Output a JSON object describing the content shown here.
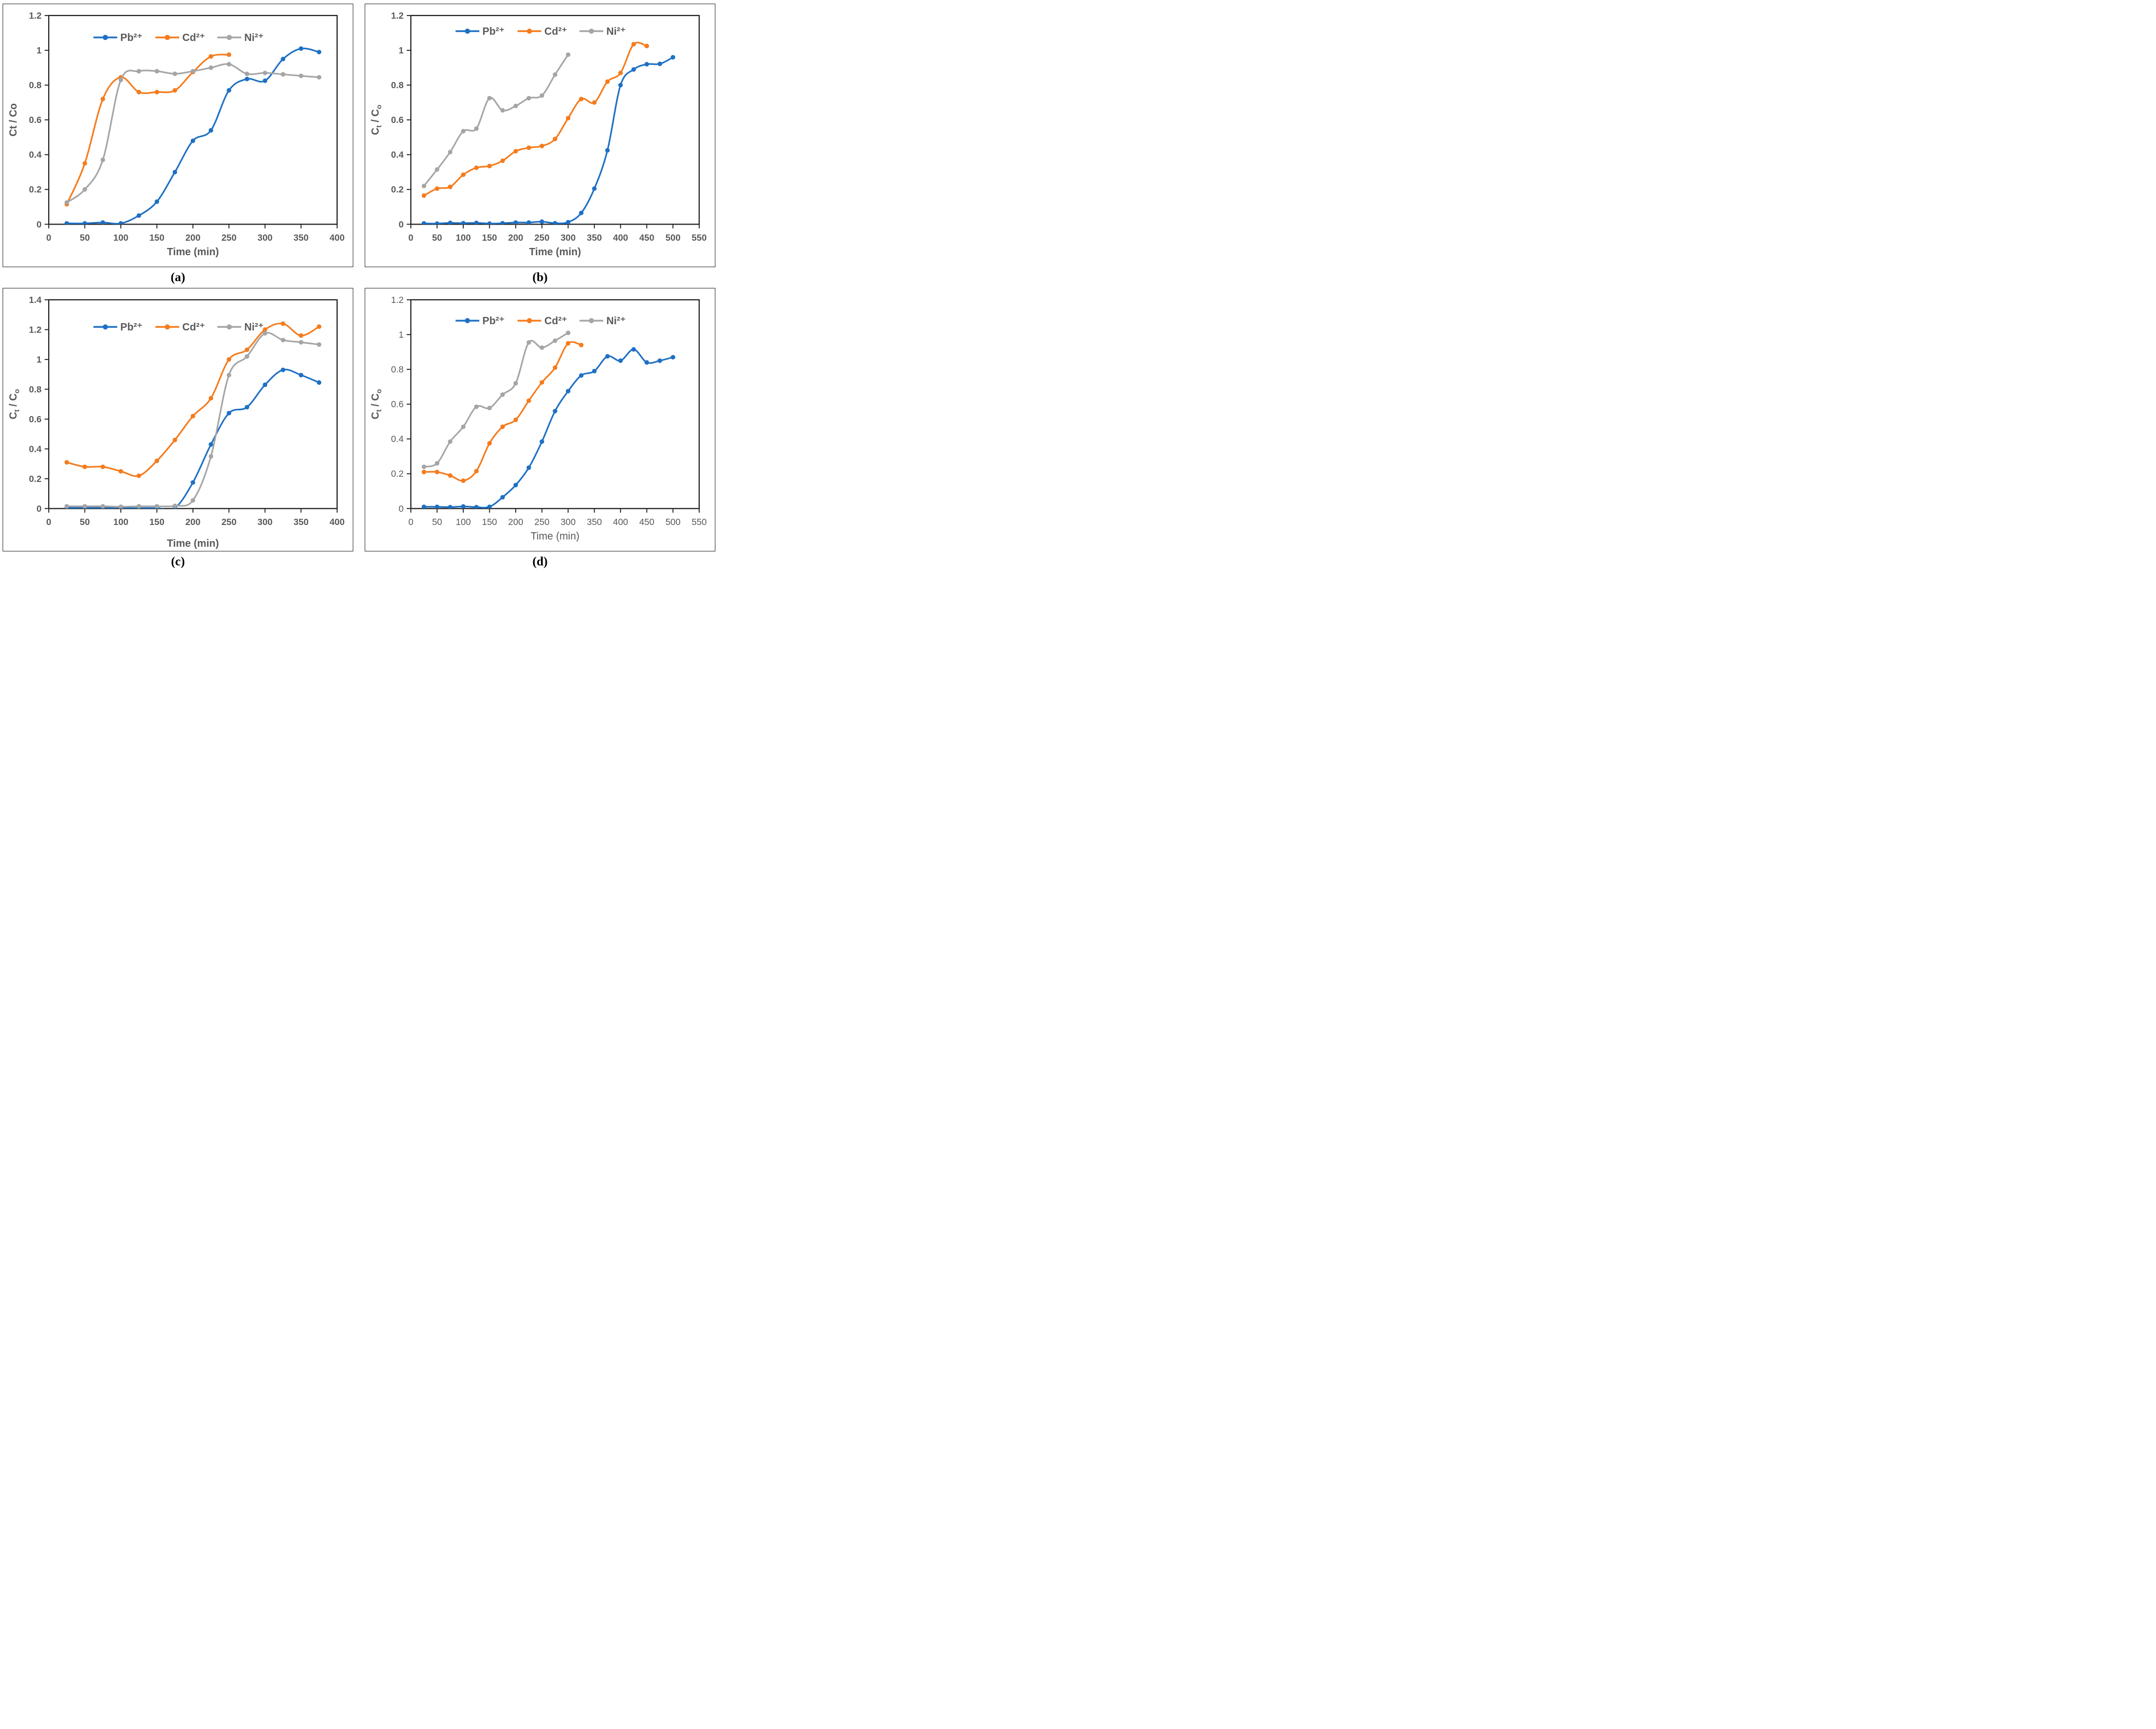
{
  "figure": {
    "background": "#ffffff",
    "panel_border_color": "#2b2b2b"
  },
  "colors": {
    "pb": "#1E70C4",
    "cd": "#F57B1C",
    "ni": "#A5A5A5",
    "text": "#595959",
    "axis": "#1f1f1f"
  },
  "chart_data": [
    {
      "id": "a",
      "type": "line",
      "caption": "(a)",
      "xlabel": "Time (min)",
      "ylabel_parts": [
        {
          "t": "Ct / Co"
        }
      ],
      "xlim": [
        0,
        400
      ],
      "ylim": [
        0,
        1.2
      ],
      "xticks": [
        "0",
        "50",
        "100",
        "150",
        "200",
        "250",
        "300",
        "350",
        "400"
      ],
      "yticks": [
        "0",
        "0.2",
        "0.4",
        "0.6",
        "0.8",
        "1",
        "1.2"
      ],
      "grid": false,
      "legend_position": "top-inside",
      "legend_y_frac": 0.105,
      "bold_ticks": true,
      "bold_xlabel": true,
      "xlabel_dy": 60,
      "series": [
        {
          "name": "Pb²⁺",
          "color": "pb",
          "points": [
            [
              25,
              0.005
            ],
            [
              50,
              0.005
            ],
            [
              75,
              0.01
            ],
            [
              100,
              0.005
            ],
            [
              125,
              0.05
            ],
            [
              150,
              0.13
            ],
            [
              175,
              0.3
            ],
            [
              200,
              0.48
            ],
            [
              225,
              0.54
            ],
            [
              250,
              0.77
            ],
            [
              275,
              0.835
            ],
            [
              300,
              0.825
            ],
            [
              325,
              0.95
            ],
            [
              350,
              1.01
            ],
            [
              375,
              0.99
            ]
          ]
        },
        {
          "name": "Cd²⁺",
          "color": "cd",
          "points": [
            [
              25,
              0.115
            ],
            [
              50,
              0.35
            ],
            [
              75,
              0.72
            ],
            [
              100,
              0.845
            ],
            [
              125,
              0.76
            ],
            [
              150,
              0.76
            ],
            [
              175,
              0.77
            ],
            [
              200,
              0.875
            ],
            [
              225,
              0.965
            ],
            [
              250,
              0.975
            ]
          ]
        },
        {
          "name": "Ni²⁺",
          "color": "ni",
          "points": [
            [
              25,
              0.125
            ],
            [
              50,
              0.2
            ],
            [
              75,
              0.37
            ],
            [
              100,
              0.83
            ],
            [
              125,
              0.88
            ],
            [
              150,
              0.88
            ],
            [
              175,
              0.865
            ],
            [
              200,
              0.88
            ],
            [
              225,
              0.9
            ],
            [
              250,
              0.92
            ],
            [
              275,
              0.865
            ],
            [
              300,
              0.87
            ],
            [
              325,
              0.862
            ],
            [
              350,
              0.853
            ],
            [
              375,
              0.845
            ]
          ]
        }
      ]
    },
    {
      "id": "b",
      "type": "line",
      "caption": "(b)",
      "xlabel": "Time (min)",
      "ylabel_parts": [
        {
          "t": "C"
        },
        {
          "t": "t",
          "sub": true
        },
        {
          "t": " / C"
        },
        {
          "t": "o",
          "sub": true
        }
      ],
      "xlim": [
        0,
        550
      ],
      "ylim": [
        0,
        1.2
      ],
      "xticks": [
        "0",
        "50",
        "100",
        "150",
        "200",
        "250",
        "300",
        "350",
        "400",
        "450",
        "500",
        "550"
      ],
      "yticks": [
        "0",
        "0.2",
        "0.4",
        "0.6",
        "0.8",
        "1",
        "1.2"
      ],
      "grid": false,
      "legend_position": "top-inside",
      "legend_y_frac": 0.075,
      "bold_ticks": true,
      "bold_xlabel": true,
      "xlabel_dy": 60,
      "series": [
        {
          "name": "Pb²⁺",
          "color": "pb",
          "points": [
            [
              25,
              0.005
            ],
            [
              50,
              0.004
            ],
            [
              75,
              0.008
            ],
            [
              100,
              0.006
            ],
            [
              125,
              0.008
            ],
            [
              150,
              0.004
            ],
            [
              175,
              0.006
            ],
            [
              200,
              0.01
            ],
            [
              225,
              0.01
            ],
            [
              250,
              0.015
            ],
            [
              275,
              0.006
            ],
            [
              300,
              0.012
            ],
            [
              325,
              0.065
            ],
            [
              350,
              0.205
            ],
            [
              375,
              0.425
            ],
            [
              400,
              0.8
            ],
            [
              425,
              0.89
            ],
            [
              450,
              0.92
            ],
            [
              475,
              0.922
            ],
            [
              500,
              0.96
            ]
          ]
        },
        {
          "name": "Cd²⁺",
          "color": "cd",
          "points": [
            [
              25,
              0.165
            ],
            [
              50,
              0.205
            ],
            [
              75,
              0.215
            ],
            [
              100,
              0.285
            ],
            [
              125,
              0.325
            ],
            [
              150,
              0.335
            ],
            [
              175,
              0.365
            ],
            [
              200,
              0.42
            ],
            [
              225,
              0.44
            ],
            [
              250,
              0.45
            ],
            [
              275,
              0.49
            ],
            [
              300,
              0.61
            ],
            [
              325,
              0.72
            ],
            [
              350,
              0.7
            ],
            [
              375,
              0.82
            ],
            [
              400,
              0.87
            ],
            [
              425,
              1.035
            ],
            [
              450,
              1.025
            ]
          ]
        },
        {
          "name": "Ni²⁺",
          "color": "ni",
          "points": [
            [
              25,
              0.22
            ],
            [
              50,
              0.315
            ],
            [
              75,
              0.415
            ],
            [
              100,
              0.535
            ],
            [
              125,
              0.55
            ],
            [
              150,
              0.725
            ],
            [
              175,
              0.655
            ],
            [
              200,
              0.68
            ],
            [
              225,
              0.725
            ],
            [
              250,
              0.74
            ],
            [
              275,
              0.86
            ],
            [
              300,
              0.975
            ]
          ]
        }
      ]
    },
    {
      "id": "c",
      "type": "line",
      "caption": "(c)",
      "xlabel": "Time (min)",
      "ylabel_parts": [
        {
          "t": "C"
        },
        {
          "t": "t",
          "sub": true
        },
        {
          "t": " / C"
        },
        {
          "t": "o",
          "sub": true
        }
      ],
      "xlim": [
        0,
        400
      ],
      "ylim": [
        0,
        1.4
      ],
      "xticks": [
        "0",
        "50",
        "100",
        "150",
        "200",
        "250",
        "300",
        "350",
        "400"
      ],
      "yticks": [
        "0",
        "0.2",
        "0.4",
        "0.6",
        "0.8",
        "1",
        "1.2",
        "1.4"
      ],
      "grid": false,
      "legend_position": "top-inside",
      "legend_y_frac": 0.13,
      "bold_ticks": true,
      "bold_xlabel": true,
      "xlabel_dy": 74,
      "series": [
        {
          "name": "Pb²⁺",
          "color": "pb",
          "points": [
            [
              25,
              0.005
            ],
            [
              50,
              0.005
            ],
            [
              75,
              0.005
            ],
            [
              100,
              0.003
            ],
            [
              125,
              0.003
            ],
            [
              150,
              0.003
            ],
            [
              175,
              0.004
            ],
            [
              200,
              0.175
            ],
            [
              225,
              0.43
            ],
            [
              250,
              0.64
            ],
            [
              275,
              0.68
            ],
            [
              300,
              0.83
            ],
            [
              325,
              0.93
            ],
            [
              350,
              0.895
            ],
            [
              375,
              0.845
            ]
          ]
        },
        {
          "name": "Cd²⁺",
          "color": "cd",
          "points": [
            [
              25,
              0.31
            ],
            [
              50,
              0.28
            ],
            [
              75,
              0.28
            ],
            [
              100,
              0.25
            ],
            [
              125,
              0.22
            ],
            [
              150,
              0.32
            ],
            [
              175,
              0.46
            ],
            [
              200,
              0.62
            ],
            [
              225,
              0.74
            ],
            [
              250,
              1.0
            ],
            [
              275,
              1.065
            ],
            [
              300,
              1.2
            ],
            [
              325,
              1.24
            ],
            [
              350,
              1.16
            ],
            [
              375,
              1.22
            ]
          ]
        },
        {
          "name": "Ni²⁺",
          "color": "ni",
          "points": [
            [
              25,
              0.015
            ],
            [
              50,
              0.015
            ],
            [
              75,
              0.015
            ],
            [
              100,
              0.012
            ],
            [
              125,
              0.015
            ],
            [
              150,
              0.015
            ],
            [
              175,
              0.018
            ],
            [
              200,
              0.055
            ],
            [
              225,
              0.35
            ],
            [
              250,
              0.895
            ],
            [
              275,
              1.02
            ],
            [
              300,
              1.175
            ],
            [
              325,
              1.13
            ],
            [
              350,
              1.115
            ],
            [
              375,
              1.1
            ]
          ]
        }
      ]
    },
    {
      "id": "d",
      "type": "line",
      "caption": "(d)",
      "xlabel": "Time (min)",
      "ylabel_parts": [
        {
          "t": "C"
        },
        {
          "t": "t",
          "sub": true
        },
        {
          "t": " / C"
        },
        {
          "t": "o",
          "sub": true
        }
      ],
      "xlim": [
        0,
        550
      ],
      "ylim": [
        0,
        1.2
      ],
      "xticks": [
        "0",
        "50",
        "100",
        "150",
        "200",
        "250",
        "300",
        "350",
        "400",
        "450",
        "500",
        "550"
      ],
      "yticks": [
        "0",
        "0.2",
        "0.4",
        "0.6",
        "0.8",
        "1",
        "1.2"
      ],
      "grid": false,
      "legend_position": "top-inside",
      "legend_y_frac": 0.1,
      "bold_ticks": false,
      "bold_xlabel": false,
      "xlabel_dy": 60,
      "series": [
        {
          "name": "Pb²⁺",
          "color": "pb",
          "points": [
            [
              25,
              0.01
            ],
            [
              50,
              0.01
            ],
            [
              75,
              0.008
            ],
            [
              100,
              0.012
            ],
            [
              125,
              0.008
            ],
            [
              150,
              0.01
            ],
            [
              175,
              0.065
            ],
            [
              200,
              0.135
            ],
            [
              225,
              0.235
            ],
            [
              250,
              0.385
            ],
            [
              275,
              0.56
            ],
            [
              300,
              0.675
            ],
            [
              325,
              0.765
            ],
            [
              350,
              0.79
            ],
            [
              375,
              0.875
            ],
            [
              400,
              0.85
            ],
            [
              425,
              0.915
            ],
            [
              450,
              0.84
            ],
            [
              475,
              0.85
            ],
            [
              500,
              0.87
            ]
          ]
        },
        {
          "name": "Cd²⁺",
          "color": "cd",
          "points": [
            [
              25,
              0.21
            ],
            [
              50,
              0.21
            ],
            [
              75,
              0.19
            ],
            [
              100,
              0.16
            ],
            [
              125,
              0.215
            ],
            [
              150,
              0.375
            ],
            [
              175,
              0.47
            ],
            [
              200,
              0.51
            ],
            [
              225,
              0.62
            ],
            [
              250,
              0.725
            ],
            [
              275,
              0.81
            ],
            [
              300,
              0.95
            ],
            [
              325,
              0.94
            ]
          ]
        },
        {
          "name": "Ni²⁺",
          "color": "ni",
          "points": [
            [
              25,
              0.24
            ],
            [
              50,
              0.26
            ],
            [
              75,
              0.385
            ],
            [
              100,
              0.47
            ],
            [
              125,
              0.585
            ],
            [
              150,
              0.578
            ],
            [
              175,
              0.655
            ],
            [
              200,
              0.72
            ],
            [
              225,
              0.955
            ],
            [
              250,
              0.925
            ],
            [
              275,
              0.965
            ],
            [
              300,
              1.01
            ]
          ]
        }
      ]
    }
  ]
}
